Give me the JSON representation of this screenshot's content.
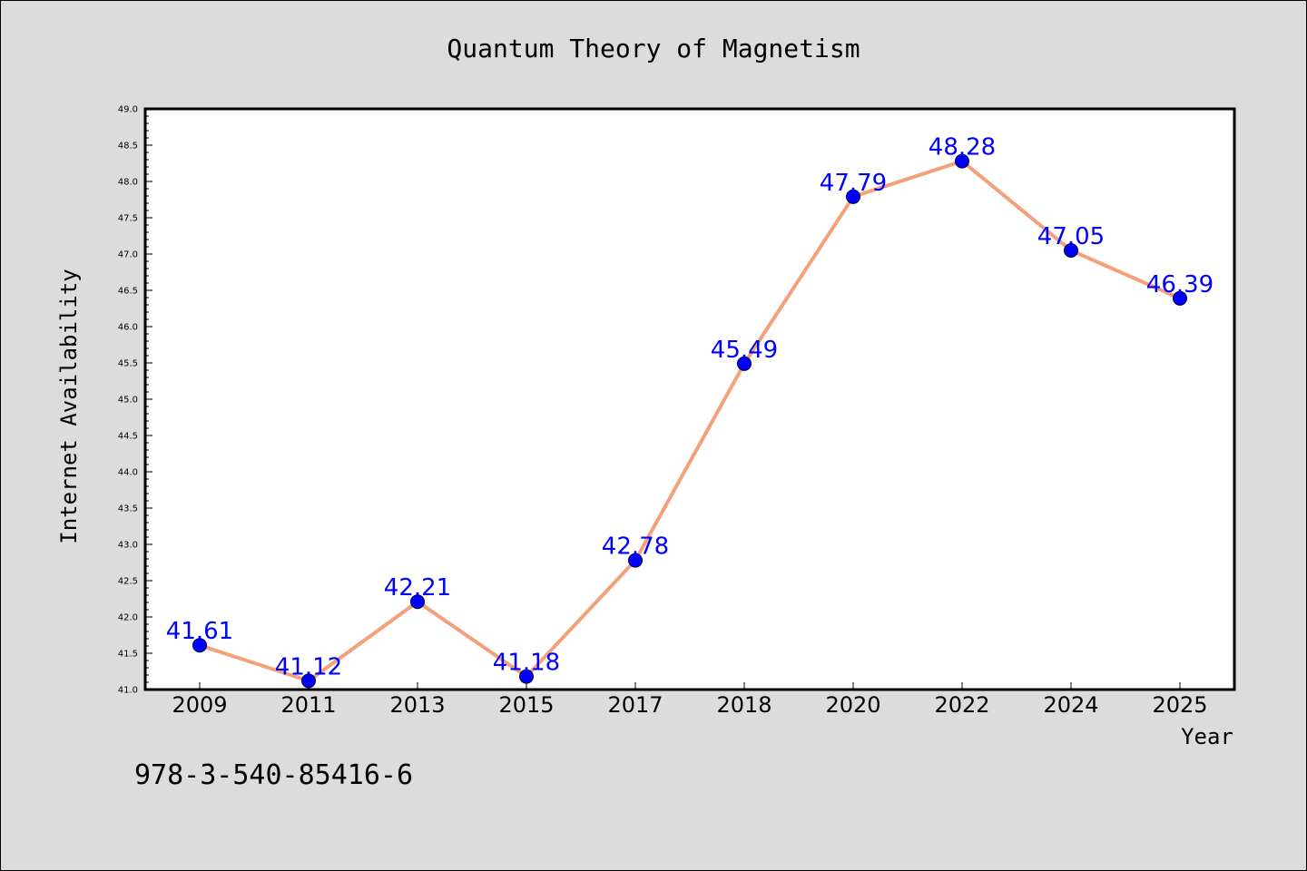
{
  "chart_data": {
    "type": "line",
    "title": "Quantum Theory of Magnetism",
    "xlabel": "Year",
    "ylabel": "Internet Availability",
    "categories": [
      "2009",
      "2011",
      "2013",
      "2015",
      "2017",
      "2018",
      "2020",
      "2022",
      "2024",
      "2025"
    ],
    "values": [
      41.61,
      41.12,
      42.21,
      41.18,
      42.78,
      45.49,
      47.79,
      48.28,
      47.05,
      46.39
    ],
    "data_labels": [
      "41.61",
      "41.12",
      "42.21",
      "41.18",
      "42.78",
      "45.49",
      "47.79",
      "48.28",
      "47.05",
      "46.39"
    ],
    "ylim": [
      41.0,
      49.0
    ],
    "yticks": [
      "41.0",
      "41.5",
      "42.0",
      "42.5",
      "43.0",
      "43.5",
      "44.0",
      "44.5",
      "45.0",
      "45.5",
      "46.0",
      "46.5",
      "47.0",
      "47.5",
      "48.0",
      "48.5",
      "49.0"
    ],
    "grid": false,
    "legend": "none",
    "colors": {
      "line": "#f4a07a",
      "marker": "#0000ff",
      "marker_edge": "#000033",
      "data_label": "#0000ff",
      "plot_background": "#ffffff",
      "figure_background": "#dcdcdc"
    }
  },
  "footnote": "978-3-540-85416-6"
}
